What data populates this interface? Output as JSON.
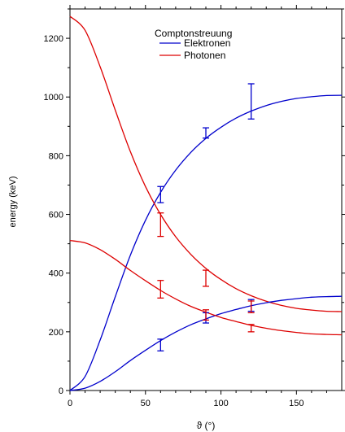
{
  "chart_data": {
    "type": "line",
    "title": "",
    "xlabel": "ϑ (°)",
    "ylabel": "energy (keV)",
    "xlim": [
      0,
      180
    ],
    "ylim": [
      0,
      1300
    ],
    "x_ticks": [
      0,
      50,
      100,
      150
    ],
    "y_ticks": [
      0,
      200,
      400,
      600,
      800,
      1000,
      1200
    ],
    "grid": false,
    "legend": {
      "title": "Comptonstreuung",
      "placement": "top-center",
      "entries": [
        {
          "label": "Elektronen",
          "color": "#0000cc"
        },
        {
          "label": "Photonen",
          "color": "#dd0000"
        }
      ]
    },
    "series": [
      {
        "name": "Elektronen",
        "color": "#0000cc",
        "curve_energy_keV": 1275,
        "x": [
          0,
          10,
          20,
          30,
          40,
          50,
          60,
          70,
          80,
          90,
          100,
          110,
          120,
          130,
          140,
          150,
          160,
          170,
          180
        ],
        "y": [
          0,
          48,
          172,
          320,
          461,
          580,
          675,
          751,
          811,
          859,
          897,
          928,
          952,
          971,
          985,
          995,
          1001,
          1005,
          1006
        ]
      },
      {
        "name": "Photonen",
        "color": "#dd0000",
        "curve_energy_keV": 1275,
        "x": [
          0,
          10,
          20,
          30,
          40,
          50,
          60,
          70,
          80,
          90,
          100,
          110,
          120,
          130,
          140,
          150,
          160,
          170,
          180
        ],
        "y": [
          1275,
          1227,
          1103,
          955,
          814,
          695,
          600,
          524,
          464,
          416,
          378,
          347,
          323,
          304,
          290,
          280,
          274,
          270,
          269
        ]
      },
      {
        "name": "Elektronen",
        "color": "#0000cc",
        "curve_energy_keV": 511,
        "x": [
          0,
          10,
          20,
          30,
          40,
          50,
          60,
          70,
          80,
          90,
          100,
          110,
          120,
          130,
          140,
          150,
          160,
          170,
          180
        ],
        "y": [
          0,
          8,
          31,
          64,
          102,
          137,
          170,
          199,
          224,
          244,
          262,
          276,
          289,
          299,
          307,
          313,
          318,
          320,
          321
        ]
      },
      {
        "name": "Photonen",
        "color": "#dd0000",
        "curve_energy_keV": 511,
        "x": [
          0,
          10,
          20,
          30,
          40,
          50,
          60,
          70,
          80,
          90,
          100,
          110,
          120,
          130,
          140,
          150,
          160,
          170,
          180
        ],
        "y": [
          511,
          503,
          480,
          447,
          409,
          374,
          341,
          312,
          287,
          267,
          249,
          235,
          222,
          212,
          204,
          198,
          193,
          191,
          190
        ]
      }
    ],
    "error_bars": [
      {
        "series": "Elektronen",
        "color": "#0000cc",
        "x": 60,
        "y": 665,
        "low": 640,
        "high": 695
      },
      {
        "series": "Elektronen",
        "color": "#0000cc",
        "x": 90,
        "y": 875,
        "low": 860,
        "high": 895
      },
      {
        "series": "Elektronen",
        "color": "#0000cc",
        "x": 120,
        "y": 985,
        "low": 925,
        "high": 1045
      },
      {
        "series": "Elektronen",
        "color": "#0000cc",
        "x": 60,
        "y": 155,
        "low": 135,
        "high": 175
      },
      {
        "series": "Elektronen",
        "color": "#0000cc",
        "x": 90,
        "y": 250,
        "low": 230,
        "high": 265
      },
      {
        "series": "Elektronen",
        "color": "#0000cc",
        "x": 120,
        "y": 290,
        "low": 270,
        "high": 310
      },
      {
        "series": "Photonen",
        "color": "#dd0000",
        "x": 60,
        "y": 565,
        "low": 525,
        "high": 605
      },
      {
        "series": "Photonen",
        "color": "#dd0000",
        "x": 90,
        "y": 380,
        "low": 355,
        "high": 410
      },
      {
        "series": "Photonen",
        "color": "#dd0000",
        "x": 120,
        "y": 285,
        "low": 265,
        "high": 305
      },
      {
        "series": "Photonen",
        "color": "#dd0000",
        "x": 60,
        "y": 345,
        "low": 315,
        "high": 375
      },
      {
        "series": "Photonen",
        "color": "#dd0000",
        "x": 90,
        "y": 255,
        "low": 240,
        "high": 275
      },
      {
        "series": "Photonen",
        "color": "#dd0000",
        "x": 120,
        "y": 215,
        "low": 200,
        "high": 225
      }
    ]
  }
}
